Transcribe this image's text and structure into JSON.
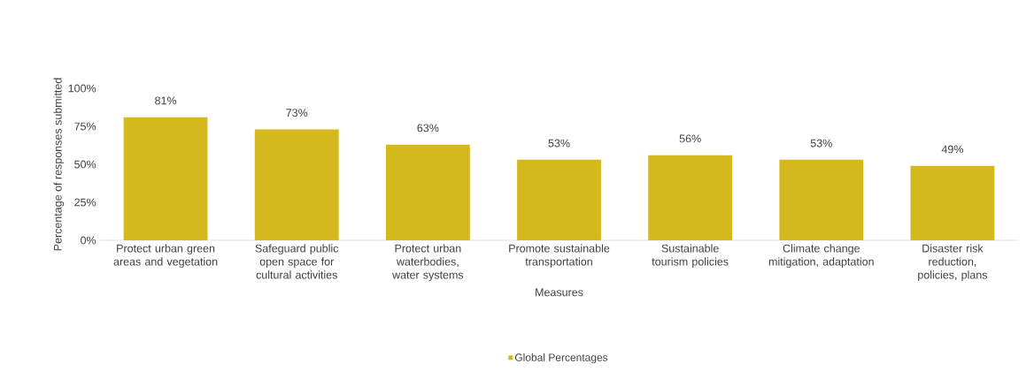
{
  "chart_data": {
    "type": "bar",
    "xlabel": "Measures",
    "ylabel": "Percentage of responses submitted",
    "categories": [
      "Protect urban green areas and vegetation",
      "Safeguard public open space for cultural activities",
      "Protect urban waterbodies, water systems",
      "Promote sustainable transportation",
      "Sustainable tourism policies",
      "Climate change mitigation, adaptation",
      "Disaster risk reduction, policies, plans"
    ],
    "series": [
      {
        "name": "Global Percentages",
        "color": "#d4b81e",
        "values": [
          81,
          73,
          63,
          53,
          56,
          53,
          49
        ],
        "value_labels": [
          "81%",
          "73%",
          "63%",
          "53%",
          "56%",
          "53%",
          "49%"
        ]
      }
    ],
    "ylim": [
      0,
      100
    ],
    "yticks": [
      {
        "value": 0,
        "label": "0%"
      },
      {
        "value": 25,
        "label": "25%"
      },
      {
        "value": 50,
        "label": "50%"
      },
      {
        "value": 75,
        "label": "75%"
      },
      {
        "value": 100,
        "label": "100%"
      }
    ],
    "legend": "bottom",
    "grid": false
  }
}
